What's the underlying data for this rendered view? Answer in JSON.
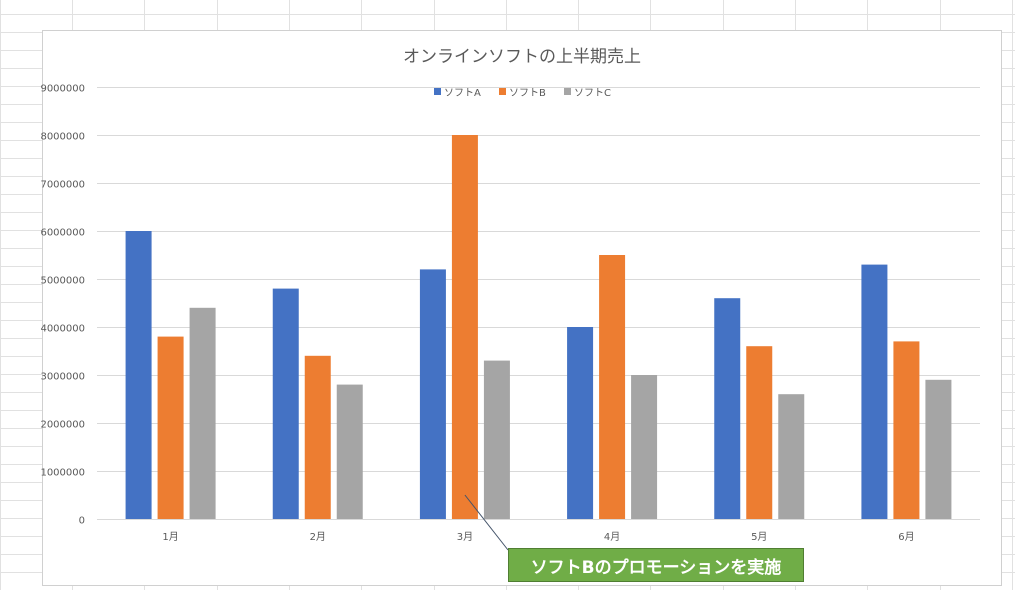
{
  "chart_data": {
    "type": "bar",
    "title": "オンラインソフトの上半期売上",
    "categories": [
      "1月",
      "2月",
      "3月",
      "4月",
      "5月",
      "6月"
    ],
    "series": [
      {
        "name": "ソフトA",
        "color": "#4472c4",
        "values": [
          6000000,
          4800000,
          5200000,
          4000000,
          4600000,
          5300000
        ]
      },
      {
        "name": "ソフトB",
        "color": "#ed7d31",
        "values": [
          3800000,
          3400000,
          8000000,
          5500000,
          3600000,
          3700000
        ]
      },
      {
        "name": "ソフトC",
        "color": "#a5a5a5",
        "values": [
          4400000,
          2800000,
          3300000,
          3000000,
          2600000,
          2900000
        ]
      }
    ],
    "ylim": [
      0,
      9000000
    ],
    "yticks": [
      0,
      1000000,
      2000000,
      3000000,
      4000000,
      5000000,
      6000000,
      7000000,
      8000000,
      9000000
    ],
    "grid": true,
    "legend_position": "top",
    "annotation": {
      "text": "ソフトBのプロモーションを実施",
      "category": "3月",
      "series": "ソフトB",
      "background_color": "#70ad47"
    }
  }
}
